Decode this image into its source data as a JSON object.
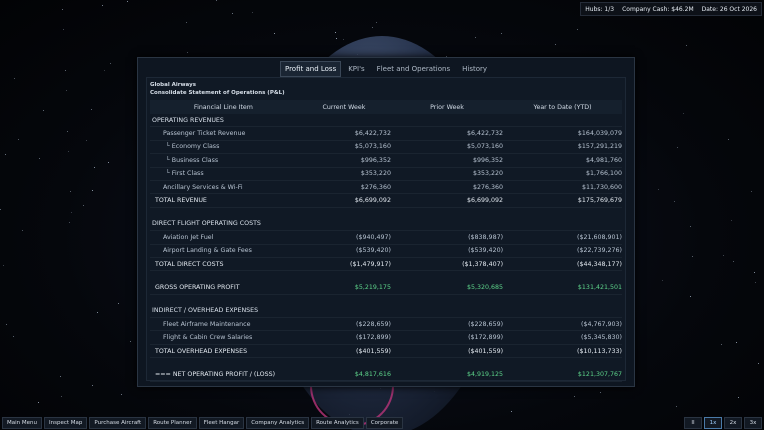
{
  "hud": {
    "hubs": "Hubs: 1/3",
    "cash": "Company Cash: $46.2M",
    "date": "Date: 26 Oct 2026"
  },
  "tabs": [
    "Profit and Loss",
    "KPI's",
    "Fleet and Operations",
    "History"
  ],
  "report": {
    "company": "Global Airways",
    "title": "Consolidate Statement of Operations (P&L)",
    "columns": [
      "Financial Line Item",
      "Current Week",
      "Prior Week",
      "Year to Date (YTD)"
    ],
    "rows": {
      "op_rev": {
        "label": "OPERATING REVENUES"
      },
      "pax": {
        "label": "Passenger Ticket Revenue",
        "cw": "$6,422,732",
        "pw": "$6,422,732",
        "ytd": "$164,039,079"
      },
      "eco": {
        "label": "Economy Class",
        "cw": "$5,073,160",
        "pw": "$5,073,160",
        "ytd": "$157,291,219"
      },
      "bus": {
        "label": "Business Class",
        "cw": "$996,352",
        "pw": "$996,352",
        "ytd": "$4,981,760"
      },
      "first": {
        "label": "First Class",
        "cw": "$353,220",
        "pw": "$353,220",
        "ytd": "$1,766,100"
      },
      "anc": {
        "label": "Ancillary Services & Wi-Fi",
        "cw": "$276,360",
        "pw": "$276,360",
        "ytd": "$11,730,600"
      },
      "total_rev": {
        "label": "TOTAL REVENUE",
        "cw": "$6,699,092",
        "pw": "$6,699,092",
        "ytd": "$175,769,679"
      },
      "direct": {
        "label": "DIRECT FLIGHT OPERATING COSTS"
      },
      "fuel": {
        "label": "Aviation Jet Fuel",
        "cw": "($940,497)",
        "pw": "($838,987)",
        "ytd": "($21,608,901)"
      },
      "landing": {
        "label": "Airport Landing & Gate Fees",
        "cw": "($539,420)",
        "pw": "($539,420)",
        "ytd": "($22,739,276)"
      },
      "total_direct": {
        "label": "TOTAL DIRECT COSTS",
        "cw": "($1,479,917)",
        "pw": "($1,378,407)",
        "ytd": "($44,348,177)"
      },
      "gross": {
        "label": "GROSS OPERATING PROFIT",
        "cw": "$5,219,175",
        "pw": "$5,320,685",
        "ytd": "$131,421,501"
      },
      "indirect": {
        "label": "INDIRECT / OVERHEAD EXPENSES"
      },
      "maint": {
        "label": "Fleet Airframe Maintenance",
        "cw": "($228,659)",
        "pw": "($228,659)",
        "ytd": "($4,767,903)"
      },
      "salaries": {
        "label": "Flight & Cabin Crew Salaries",
        "cw": "($172,899)",
        "pw": "($172,899)",
        "ytd": "($5,345,830)"
      },
      "total_over": {
        "label": "TOTAL OVERHEAD EXPENSES",
        "cw": "($401,559)",
        "pw": "($401,559)",
        "ytd": "($10,113,733)"
      },
      "net": {
        "label": "=== NET OPERATING PROFIT / (LOSS)",
        "cw": "$4,817,616",
        "pw": "$4,919,125",
        "ytd": "$121,307,767"
      }
    }
  },
  "nav": [
    "Main Menu",
    "Inspect Map",
    "Purchase Aircraft",
    "Route Planner",
    "Fleet Hangar",
    "Company Analytics",
    "Route Analytics",
    "Corporate"
  ],
  "speed": [
    "II",
    "1x",
    "2x",
    "3x"
  ],
  "colors": {
    "profit": "#5dd48a",
    "panel": "#0e1621",
    "accent": "#4a7aa8"
  }
}
